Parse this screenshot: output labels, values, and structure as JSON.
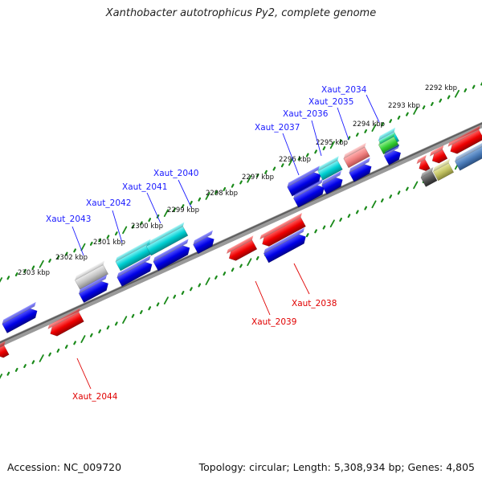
{
  "title": "Xanthobacter autotrophicus Py2, complete genome",
  "footer": {
    "accession": "Accession: NC_009720",
    "summary": "Topology: circular; Length: 5,308,934 bp; Genes: 4,805"
  },
  "scale_labels": [
    "2292 kbp",
    "2293 kbp",
    "2294 kbp",
    "2295 kbp",
    "2296 kbp",
    "2297 kbp",
    "2298 kbp",
    "2299 kbp",
    "2300 kbp",
    "2301 kbp",
    "2302 kbp",
    "2303 kbp"
  ],
  "genes_forward": [
    "Xaut_2034",
    "Xaut_2035",
    "Xaut_2036",
    "Xaut_2037",
    "Xaut_2040",
    "Xaut_2041",
    "Xaut_2042",
    "Xaut_2043"
  ],
  "genes_reverse": [
    "Xaut_2038",
    "Xaut_2039",
    "Xaut_2044"
  ],
  "colors": {
    "forward_gene": "#0000dd",
    "reverse_gene": "#ee0000",
    "cyan_gene": "#00c8cc",
    "backbone": "#7a7a7a",
    "ruler": "#1a8a1a"
  }
}
